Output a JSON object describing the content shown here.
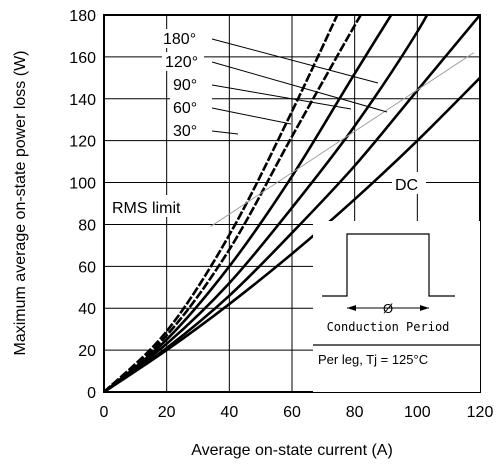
{
  "chart_data": {
    "type": "line",
    "title": "",
    "xlabel": "Average on-state current (A)",
    "ylabel": "Maximum average on-state power loss (W)",
    "xlim": [
      0,
      120
    ],
    "ylim": [
      0,
      180
    ],
    "xticks": [
      0,
      20,
      40,
      60,
      80,
      100,
      120
    ],
    "yticks": [
      0,
      20,
      40,
      60,
      80,
      100,
      120,
      140,
      160,
      180
    ],
    "grid": true,
    "series": [
      {
        "name": "180°",
        "style": "dashed-bold",
        "x": [
          0,
          20,
          40,
          60,
          80
        ],
        "y": [
          0,
          29,
          75,
          134,
          198
        ]
      },
      {
        "name": "120°",
        "style": "dashed-bold",
        "x": [
          0,
          20,
          40,
          60,
          80,
          90
        ],
        "y": [
          0,
          27,
          68,
          122,
          175,
          200
        ]
      },
      {
        "name": "90°",
        "style": "solid-bold",
        "x": [
          0,
          20,
          40,
          60,
          80,
          100
        ],
        "y": [
          0,
          25,
          60,
          103,
          152,
          200
        ]
      },
      {
        "name": "60°",
        "style": "solid-bold",
        "x": [
          0,
          20,
          40,
          60,
          80,
          100,
          110
        ],
        "y": [
          0,
          23,
          52,
          88,
          127,
          172,
          200
        ]
      },
      {
        "name": "30°",
        "style": "solid-bold",
        "x": [
          0,
          20,
          40,
          60,
          80,
          100,
          120
        ],
        "y": [
          0,
          21,
          46,
          76,
          108,
          144,
          180
        ]
      },
      {
        "name": "DC",
        "style": "solid-bold",
        "x": [
          0,
          20,
          40,
          60,
          80,
          100,
          120
        ],
        "y": [
          0,
          20,
          42,
          66,
          92,
          120,
          150
        ]
      },
      {
        "name": "RMS limit",
        "style": "thin-gray",
        "x": [
          34,
          118
        ],
        "y": [
          79,
          162
        ]
      }
    ],
    "annotations": {
      "rms_limit": "RMS limit",
      "dc": "DC",
      "conduction_period": "Conduction Period",
      "phi": "Ø",
      "conditions": "Per leg, Tj = 125°C"
    }
  }
}
